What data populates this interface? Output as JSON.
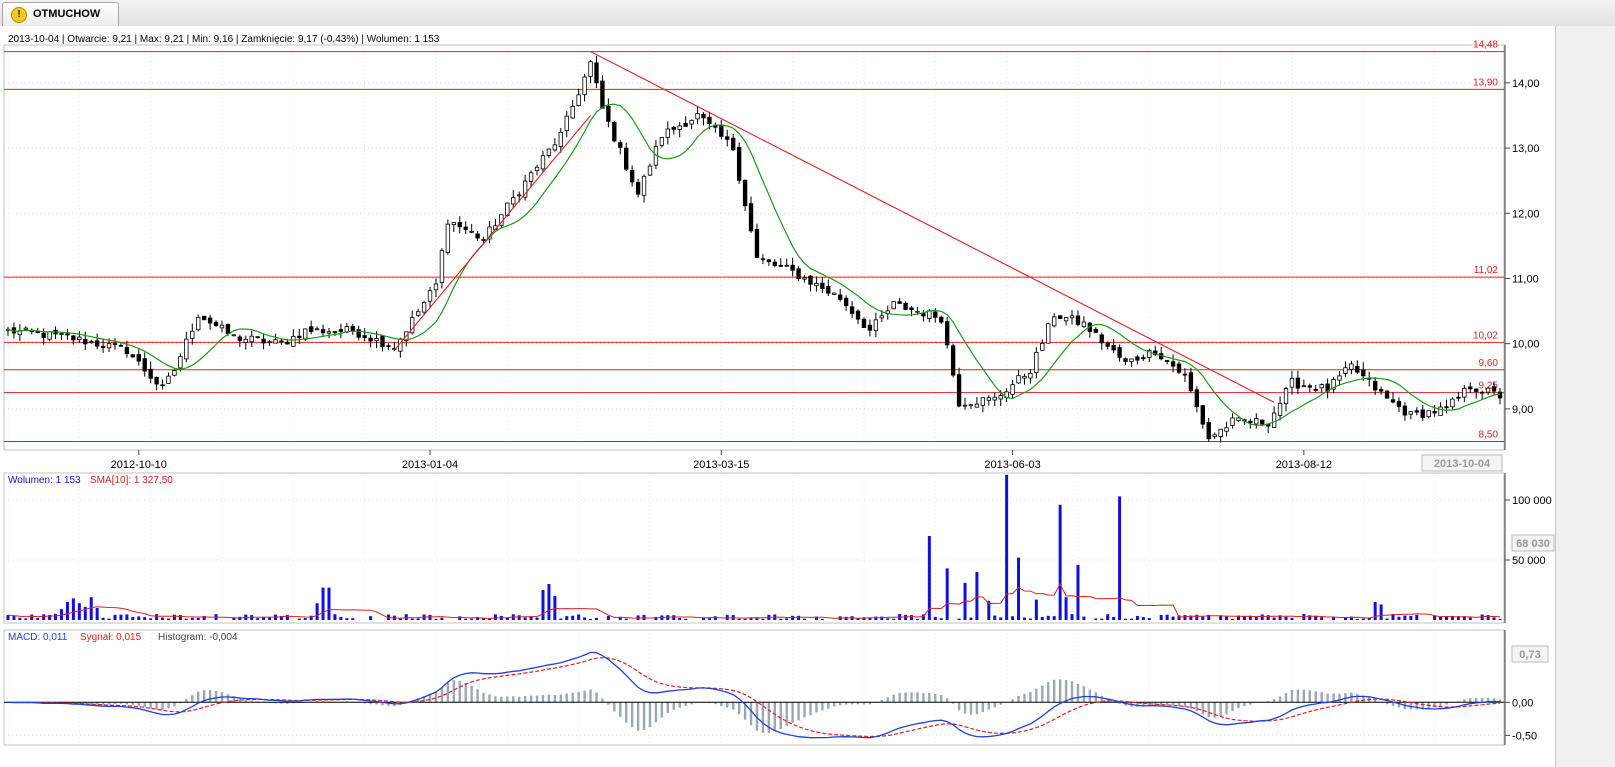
{
  "tab": {
    "label": "OTMUCHOW"
  },
  "info_line": "2013-10-04 | Otwarcie: 9,21 | Max: 9,21 | Min: 9,16 | Zamknięcie: 9,17 (-0,43%)   | Wolumen: 1 153",
  "volume_legend": {
    "vol": "Wolumen: 1 153",
    "sma": "SMA[10]: 1 327,50"
  },
  "macd_legend": {
    "macd": "MACD: 0,011",
    "signal": "Sygnał: 0,015",
    "hist": "Histogram: -0,004"
  },
  "colors": {
    "candle_up": "#ffffff",
    "candle_down": "#000000",
    "sma": "#1a9a1a",
    "levels": "#e02020",
    "trend": "#e02020",
    "volume": "#1010e0",
    "vol_sma": "#e02020",
    "macd": "#2040e0",
    "signal": "#e02020",
    "hist": "#9aa8b4"
  },
  "chart_data": [
    {
      "type": "candlestick",
      "ylim": [
        8.4,
        14.55
      ],
      "yticks": [
        "14,00",
        "13,00",
        "12,00",
        "11,00",
        "10,00",
        "9,00"
      ],
      "x_tick_labels": [
        "2012-10-10",
        "2013-01-04",
        "2013-03-15",
        "2013-06-03",
        "2013-08-12"
      ],
      "last_date_label": "2013-10-04",
      "horizontal_levels": [
        {
          "value": 14.48,
          "label": "14,48"
        },
        {
          "value": 13.9,
          "label": "13,90"
        },
        {
          "value": 11.02,
          "label": "11,02"
        },
        {
          "value": 10.02,
          "label": "10,02"
        },
        {
          "value": 9.6,
          "label": "9,60"
        },
        {
          "value": 9.25,
          "label": "9,25"
        },
        {
          "value": 8.5,
          "label": "8,50"
        }
      ],
      "trendlines": [
        {
          "from_bar": 65,
          "from": 9.9,
          "to_bar": 98,
          "to": 13.5
        },
        {
          "from_bar": 98,
          "from": 14.48,
          "to_bar": 213,
          "to": 9.1
        }
      ],
      "close_keypoints": [
        [
          0,
          10.2
        ],
        [
          10,
          10.1
        ],
        [
          20,
          9.9
        ],
        [
          26,
          9.3
        ],
        [
          28,
          9.6
        ],
        [
          32,
          10.45
        ],
        [
          38,
          10.1
        ],
        [
          46,
          10.0
        ],
        [
          50,
          10.2
        ],
        [
          58,
          10.2
        ],
        [
          65,
          9.95
        ],
        [
          72,
          10.9
        ],
        [
          74,
          11.9
        ],
        [
          80,
          11.6
        ],
        [
          88,
          12.6
        ],
        [
          93,
          13.2
        ],
        [
          98,
          14.3
        ],
        [
          100,
          13.6
        ],
        [
          106,
          12.3
        ],
        [
          110,
          13.2
        ],
        [
          116,
          13.5
        ],
        [
          122,
          13.0
        ],
        [
          126,
          11.3
        ],
        [
          132,
          11.1
        ],
        [
          140,
          10.7
        ],
        [
          145,
          10.2
        ],
        [
          149,
          10.6
        ],
        [
          157,
          10.4
        ],
        [
          160,
          9.1
        ],
        [
          166,
          9.15
        ],
        [
          172,
          9.6
        ],
        [
          176,
          10.45
        ],
        [
          181,
          10.3
        ],
        [
          188,
          9.7
        ],
        [
          193,
          9.9
        ],
        [
          198,
          9.5
        ],
        [
          202,
          8.55
        ],
        [
          206,
          8.8
        ],
        [
          212,
          8.8
        ],
        [
          216,
          9.4
        ],
        [
          222,
          9.3
        ],
        [
          226,
          9.65
        ],
        [
          232,
          9.15
        ],
        [
          236,
          8.9
        ],
        [
          242,
          9.0
        ],
        [
          246,
          9.35
        ],
        [
          251,
          9.2
        ]
      ],
      "sma_period": 10,
      "bars": 252
    },
    {
      "type": "bar",
      "title": "Wolumen",
      "ylim": [
        0,
        120000
      ],
      "yticks": [
        "100 000",
        "50 000"
      ],
      "box_label": "68 030",
      "spikes": [
        [
          7,
          4200
        ],
        [
          8,
          5200
        ],
        [
          9,
          9000
        ],
        [
          10,
          15000
        ],
        [
          11,
          18000
        ],
        [
          12,
          14000
        ],
        [
          13,
          11000
        ],
        [
          14,
          19000
        ],
        [
          15,
          10000
        ],
        [
          52,
          14000
        ],
        [
          53,
          27000
        ],
        [
          54,
          27000
        ],
        [
          90,
          25000
        ],
        [
          91,
          30000
        ],
        [
          92,
          20000
        ],
        [
          155,
          70000
        ],
        [
          158,
          43000
        ],
        [
          161,
          31000
        ],
        [
          163,
          40000
        ],
        [
          165,
          16000
        ],
        [
          168,
          121000
        ],
        [
          170,
          52000
        ],
        [
          173,
          17000
        ],
        [
          177,
          96000
        ],
        [
          178,
          19000
        ],
        [
          180,
          46000
        ],
        [
          187,
          103000
        ],
        [
          230,
          15000
        ],
        [
          231,
          13000
        ]
      ]
    },
    {
      "type": "line",
      "title": "MACD",
      "ylim": [
        -0.6,
        0.82
      ],
      "yticks": [
        "0,00",
        "-0,50"
      ],
      "box_label": "0,73"
    }
  ]
}
